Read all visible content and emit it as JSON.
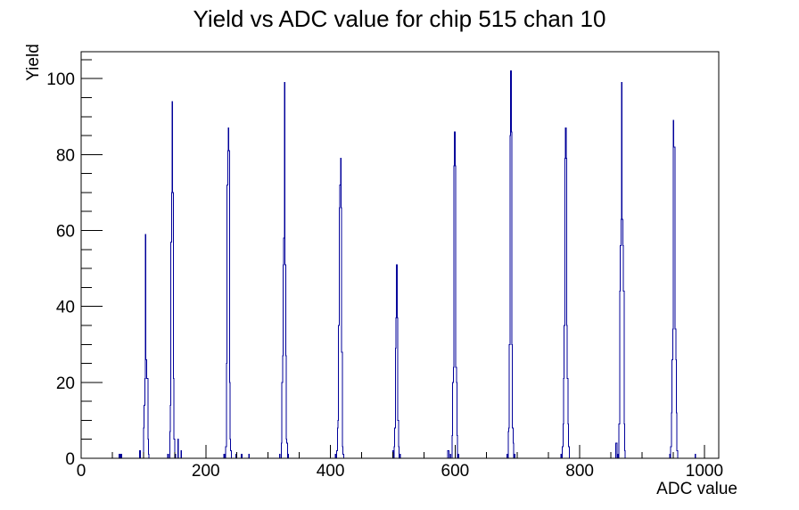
{
  "title": "Yield vs ADC value for chip 515 chan 10",
  "colors": {
    "histogram_line": "#00009a",
    "axis": "#000000",
    "background": "#ffffff",
    "text": "#000000"
  },
  "chart_data": {
    "type": "bar",
    "title": "Yield vs ADC value for chip 515 chan 10",
    "xlabel": "ADC value",
    "ylabel": "Yield",
    "xlim": [
      0,
      1023
    ],
    "ylim": [
      0,
      107.1
    ],
    "grid": false,
    "legend": "none",
    "x_major_ticks": [
      0,
      200,
      400,
      600,
      800,
      1000
    ],
    "x_minor_step": 50,
    "y_major_ticks": [
      0,
      20,
      40,
      60,
      80,
      100
    ],
    "y_minor_step": 5,
    "peaks": [
      {
        "adc": 103,
        "yield": 59
      },
      {
        "adc": 146,
        "yield": 94
      },
      {
        "adc": 236,
        "yield": 87
      },
      {
        "adc": 326,
        "yield": 99
      },
      {
        "adc": 416,
        "yield": 79
      },
      {
        "adc": 506,
        "yield": 51
      },
      {
        "adc": 599,
        "yield": 86
      },
      {
        "adc": 689,
        "yield": 102
      },
      {
        "adc": 777,
        "yield": 87
      },
      {
        "adc": 867,
        "yield": 99
      },
      {
        "adc": 950,
        "yield": 89
      }
    ],
    "bins": [
      [
        61,
        1
      ],
      [
        64,
        1
      ],
      [
        94,
        2
      ],
      [
        100,
        8
      ],
      [
        101,
        14
      ],
      [
        102,
        21
      ],
      [
        103,
        59
      ],
      [
        104,
        26
      ],
      [
        105,
        21
      ],
      [
        106,
        21
      ],
      [
        107,
        5
      ],
      [
        108,
        1
      ],
      [
        139,
        1
      ],
      [
        142,
        7
      ],
      [
        143,
        14
      ],
      [
        144,
        57
      ],
      [
        145,
        70
      ],
      [
        146,
        94
      ],
      [
        147,
        70
      ],
      [
        148,
        21
      ],
      [
        149,
        5
      ],
      [
        151,
        1
      ],
      [
        155,
        5
      ],
      [
        160,
        2
      ],
      [
        229,
        1
      ],
      [
        232,
        3
      ],
      [
        233,
        25
      ],
      [
        234,
        72
      ],
      [
        235,
        81
      ],
      [
        236,
        87
      ],
      [
        237,
        81
      ],
      [
        238,
        20
      ],
      [
        239,
        5
      ],
      [
        240,
        2
      ],
      [
        248,
        1
      ],
      [
        257,
        1
      ],
      [
        269,
        1
      ],
      [
        318,
        1
      ],
      [
        321,
        4
      ],
      [
        322,
        20
      ],
      [
        323,
        27
      ],
      [
        324,
        51
      ],
      [
        325,
        58
      ],
      [
        326,
        99
      ],
      [
        327,
        51
      ],
      [
        328,
        27
      ],
      [
        329,
        5
      ],
      [
        330,
        4
      ],
      [
        332,
        1
      ],
      [
        408,
        1
      ],
      [
        410,
        2
      ],
      [
        411,
        8
      ],
      [
        412,
        10
      ],
      [
        413,
        35
      ],
      [
        414,
        66
      ],
      [
        415,
        72
      ],
      [
        416,
        79
      ],
      [
        417,
        66
      ],
      [
        418,
        28
      ],
      [
        419,
        3
      ],
      [
        420,
        1
      ],
      [
        500,
        2
      ],
      [
        502,
        3
      ],
      [
        503,
        8
      ],
      [
        504,
        29
      ],
      [
        505,
        37
      ],
      [
        506,
        51
      ],
      [
        507,
        37
      ],
      [
        508,
        10
      ],
      [
        509,
        3
      ],
      [
        511,
        1
      ],
      [
        588,
        2
      ],
      [
        589,
        2
      ],
      [
        592,
        1
      ],
      [
        595,
        6
      ],
      [
        596,
        20
      ],
      [
        597,
        24
      ],
      [
        598,
        77
      ],
      [
        599,
        86
      ],
      [
        600,
        77
      ],
      [
        601,
        24
      ],
      [
        602,
        20
      ],
      [
        603,
        6
      ],
      [
        605,
        1
      ],
      [
        683,
        1
      ],
      [
        685,
        7
      ],
      [
        686,
        8
      ],
      [
        687,
        30
      ],
      [
        688,
        85
      ],
      [
        689,
        102
      ],
      [
        690,
        86
      ],
      [
        691,
        30
      ],
      [
        692,
        8
      ],
      [
        693,
        4
      ],
      [
        695,
        1
      ],
      [
        770,
        1
      ],
      [
        772,
        3
      ],
      [
        773,
        9
      ],
      [
        774,
        21
      ],
      [
        775,
        35
      ],
      [
        776,
        79
      ],
      [
        777,
        87
      ],
      [
        778,
        79
      ],
      [
        779,
        35
      ],
      [
        780,
        21
      ],
      [
        781,
        9
      ],
      [
        782,
        3
      ],
      [
        858,
        4
      ],
      [
        859,
        4
      ],
      [
        861,
        1
      ],
      [
        863,
        9
      ],
      [
        864,
        44
      ],
      [
        865,
        56
      ],
      [
        866,
        63
      ],
      [
        867,
        99
      ],
      [
        868,
        63
      ],
      [
        869,
        56
      ],
      [
        870,
        44
      ],
      [
        871,
        9
      ],
      [
        872,
        2
      ],
      [
        944,
        1
      ],
      [
        946,
        3
      ],
      [
        947,
        12
      ],
      [
        948,
        26
      ],
      [
        949,
        34
      ],
      [
        950,
        89
      ],
      [
        951,
        82
      ],
      [
        952,
        82
      ],
      [
        953,
        34
      ],
      [
        954,
        26
      ],
      [
        955,
        12
      ],
      [
        956,
        2
      ],
      [
        985,
        1
      ]
    ]
  }
}
